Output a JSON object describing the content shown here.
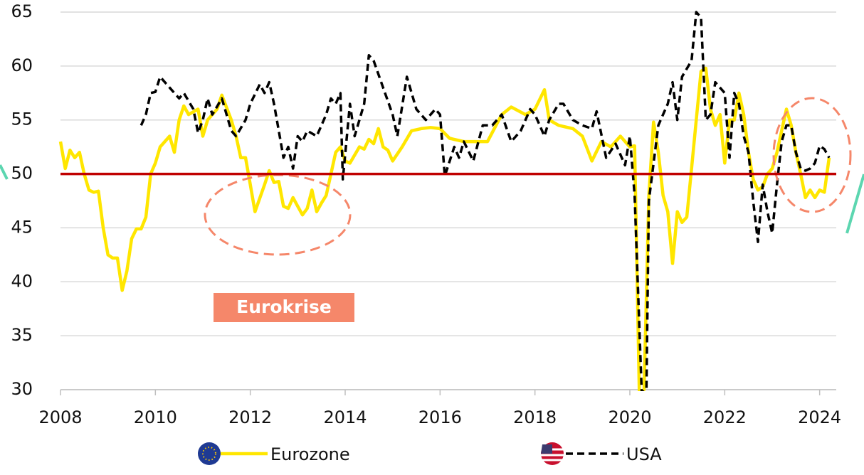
{
  "chart_data": {
    "type": "line",
    "annotation": "Eurokrise",
    "xlim": [
      2008,
      2024.35
    ],
    "xticks": [
      2008,
      2010,
      2012,
      2014,
      2016,
      2018,
      2020,
      2022,
      2024
    ],
    "ylim": [
      30,
      65
    ],
    "yticks": [
      30,
      35,
      40,
      45,
      50,
      55,
      60,
      65
    ],
    "grid": true,
    "reference_line": {
      "value": 50,
      "color": "#c00000"
    },
    "series": [
      {
        "name": "Eurozone",
        "color": "#ffe600",
        "dash": false,
        "x": [
          2008.0,
          2008.1,
          2008.2,
          2008.3,
          2008.4,
          2008.5,
          2008.6,
          2008.7,
          2008.8,
          2008.9,
          2009.0,
          2009.1,
          2009.2,
          2009.3,
          2009.4,
          2009.5,
          2009.6,
          2009.7,
          2009.8,
          2009.9,
          2010.0,
          2010.1,
          2010.3,
          2010.4,
          2010.5,
          2010.6,
          2010.7,
          2010.9,
          2011.0,
          2011.1,
          2011.3,
          2011.4,
          2011.6,
          2011.7,
          2011.8,
          2011.9,
          2012.0,
          2012.1,
          2012.3,
          2012.4,
          2012.5,
          2012.6,
          2012.7,
          2012.8,
          2012.9,
          2013.0,
          2013.1,
          2013.2,
          2013.3,
          2013.4,
          2013.5,
          2013.6,
          2013.7,
          2013.8,
          2013.9,
          2014.0,
          2014.1,
          2014.3,
          2014.4,
          2014.5,
          2014.6,
          2014.7,
          2014.8,
          2014.9,
          2015.0,
          2015.2,
          2015.4,
          2015.6,
          2015.8,
          2016.0,
          2016.2,
          2016.5,
          2016.8,
          2017.0,
          2017.3,
          2017.5,
          2017.8,
          2018.0,
          2018.2,
          2018.3,
          2018.5,
          2018.8,
          2019.0,
          2019.2,
          2019.4,
          2019.6,
          2019.8,
          2020.0,
          2020.1,
          2020.2,
          2020.3,
          2020.4,
          2020.5,
          2020.6,
          2020.7,
          2020.8,
          2020.9,
          2021.0,
          2021.1,
          2021.2,
          2021.3,
          2021.4,
          2021.5,
          2021.6,
          2021.7,
          2021.8,
          2021.9,
          2022.0,
          2022.1,
          2022.2,
          2022.3,
          2022.4,
          2022.5,
          2022.6,
          2022.7,
          2022.8,
          2022.9,
          2023.0,
          2023.1,
          2023.2,
          2023.3,
          2023.4,
          2023.5,
          2023.6,
          2023.7,
          2023.8,
          2023.9,
          2024.0,
          2024.1,
          2024.2
        ],
        "values": [
          53,
          50.5,
          52.2,
          51.5,
          52,
          50,
          48.5,
          48.3,
          48.4,
          45,
          42.5,
          42.2,
          42.2,
          39.2,
          41,
          44,
          44.9,
          44.9,
          46,
          50,
          51,
          52.5,
          53.5,
          52,
          55,
          56.3,
          55.5,
          56,
          53.5,
          55,
          56,
          57.3,
          55,
          53.5,
          51.5,
          51.5,
          49,
          46.5,
          49,
          50.3,
          49.2,
          49.3,
          47,
          46.8,
          47.8,
          47,
          46.2,
          46.8,
          48.5,
          46.5,
          47.3,
          48,
          50,
          52,
          52.5,
          51.2,
          51,
          52.5,
          52.3,
          53.2,
          52.8,
          54.2,
          52.5,
          52.2,
          51.2,
          52.5,
          54,
          54.2,
          54.3,
          54.2,
          53.3,
          53,
          53,
          53,
          55.5,
          56.2,
          55.5,
          56,
          57.8,
          55,
          54.5,
          54.2,
          53.5,
          51.2,
          53,
          52.5,
          53.5,
          52.5,
          52.6,
          29.7,
          30,
          48,
          54.8,
          52,
          48,
          46.5,
          41.7,
          46.5,
          45.5,
          46,
          50.5,
          55,
          59.5,
          59.8,
          56,
          54.5,
          55.5,
          51,
          55,
          55,
          57.5,
          55.5,
          52,
          49.5,
          48.5,
          48.8,
          50,
          50.5,
          52,
          54,
          56,
          54.5,
          52,
          50,
          47.8,
          48.5,
          47.8,
          48.5,
          48.3,
          51.5
        ]
      },
      {
        "name": "USA",
        "color": "#000000",
        "dash": true,
        "x": [
          2009.7,
          2009.8,
          2009.9,
          2010.0,
          2010.1,
          2010.3,
          2010.5,
          2010.6,
          2010.8,
          2010.9,
          2011.0,
          2011.1,
          2011.2,
          2011.4,
          2011.6,
          2011.7,
          2011.9,
          2012.0,
          2012.2,
          2012.3,
          2012.4,
          2012.5,
          2012.6,
          2012.7,
          2012.8,
          2012.9,
          2013.0,
          2013.1,
          2013.2,
          2013.4,
          2013.6,
          2013.7,
          2013.8,
          2013.9,
          2013.95,
          2014.1,
          2014.2,
          2014.3,
          2014.4,
          2014.5,
          2014.6,
          2014.8,
          2015.0,
          2015.1,
          2015.3,
          2015.5,
          2015.7,
          2015.9,
          2016.0,
          2016.1,
          2016.3,
          2016.4,
          2016.5,
          2016.7,
          2016.9,
          2017.1,
          2017.3,
          2017.5,
          2017.7,
          2017.9,
          2018.0,
          2018.2,
          2018.3,
          2018.5,
          2018.6,
          2018.8,
          2019.0,
          2019.2,
          2019.3,
          2019.5,
          2019.7,
          2019.9,
          2020.0,
          2020.1,
          2020.25,
          2020.35,
          2020.4,
          2020.6,
          2020.8,
          2020.9,
          2021.0,
          2021.1,
          2021.3,
          2021.4,
          2021.5,
          2021.6,
          2021.7,
          2021.8,
          2022.0,
          2022.1,
          2022.2,
          2022.3,
          2022.4,
          2022.5,
          2022.6,
          2022.7,
          2022.8,
          2022.9,
          2023.0,
          2023.1,
          2023.2,
          2023.3,
          2023.4,
          2023.5,
          2023.6,
          2023.7,
          2023.8,
          2023.9,
          2024.0,
          2024.1,
          2024.2
        ],
        "values": [
          54.5,
          55.5,
          57.5,
          57.6,
          59,
          58,
          57,
          57.5,
          56,
          53.8,
          55,
          57,
          55.5,
          57,
          54,
          53.5,
          55,
          56.5,
          58.3,
          57.5,
          58.5,
          56.5,
          54,
          51.5,
          52.5,
          50.5,
          53.5,
          53,
          54,
          53.5,
          55.5,
          57,
          56.5,
          57.5,
          49.5,
          56.5,
          53.5,
          55,
          56.5,
          61,
          60.5,
          58,
          55.5,
          53.5,
          59,
          56,
          55,
          56,
          55.5,
          49.8,
          52.5,
          51.5,
          53,
          51.2,
          54.5,
          54.5,
          55.5,
          53,
          54,
          56,
          55.5,
          53.5,
          55,
          56.5,
          56.5,
          55,
          54.5,
          54.2,
          55.8,
          51.5,
          52.8,
          50.8,
          53.5,
          48,
          29.7,
          30,
          47.5,
          54.5,
          56.5,
          58.5,
          55,
          59,
          60.5,
          65,
          64.5,
          55,
          55.5,
          58.5,
          57.5,
          51.5,
          57.5,
          56.5,
          53.5,
          52,
          47.5,
          43.7,
          49,
          46.5,
          44.5,
          49,
          53,
          54.5,
          54.5,
          52,
          50.5,
          50.3,
          50.5,
          51,
          52.6,
          52.3,
          51.5
        ]
      }
    ]
  }
}
